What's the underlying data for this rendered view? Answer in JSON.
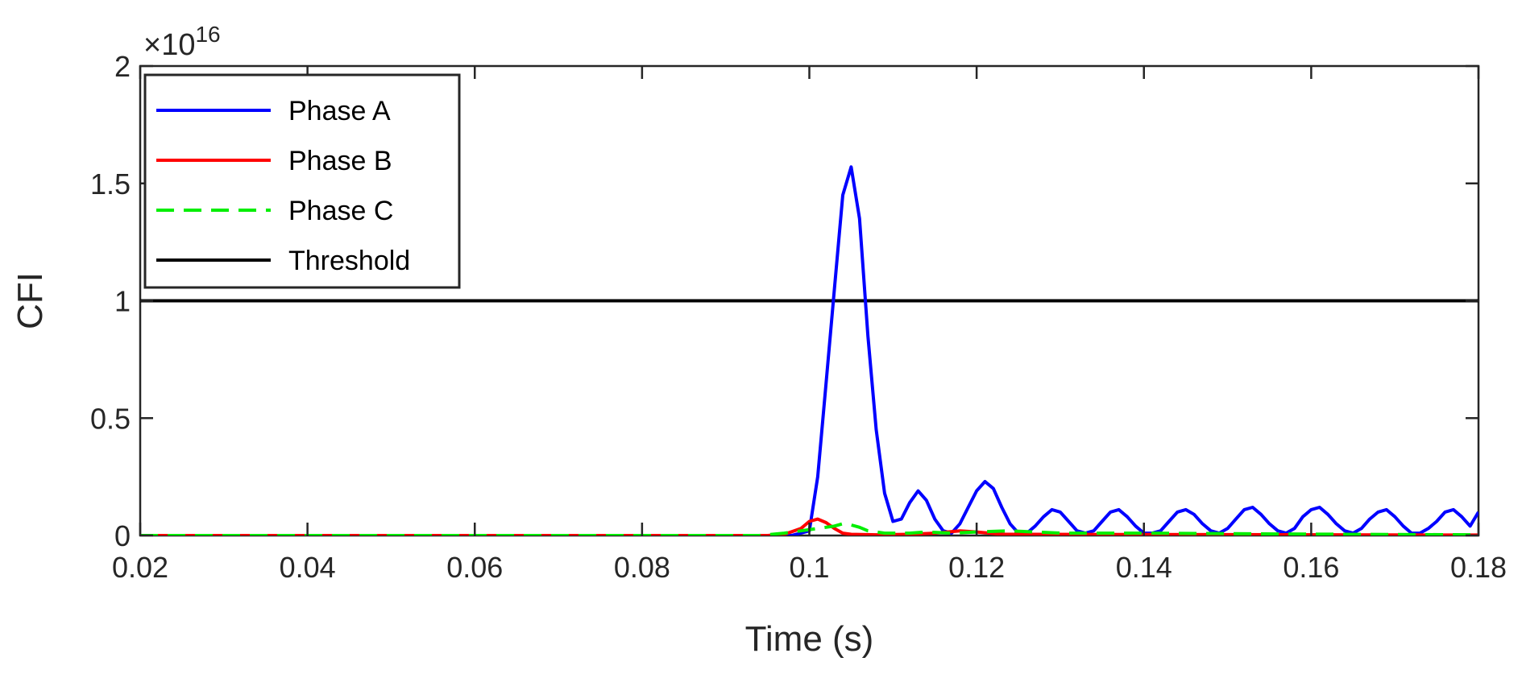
{
  "chart_data": {
    "type": "line",
    "title": "",
    "xlabel": "Time (s)",
    "ylabel": "CFI",
    "xlim": [
      0.02,
      0.18
    ],
    "ylim": [
      0,
      2
    ],
    "y_multiplier": {
      "base": "×10",
      "exponent": "16"
    },
    "xticks": [
      0.02,
      0.04,
      0.06,
      0.08,
      0.1,
      0.12,
      0.14,
      0.16,
      0.18
    ],
    "xtick_labels": [
      "0.02",
      "0.04",
      "0.06",
      "0.08",
      "0.1",
      "0.12",
      "0.14",
      "0.16",
      "0.18"
    ],
    "yticks": [
      0,
      0.5,
      1,
      1.5,
      2
    ],
    "ytick_labels": [
      "0",
      "0.5",
      "1",
      "1.5",
      "2"
    ],
    "grid": false,
    "legend_position": "top-left",
    "series": [
      {
        "name": "Phase A",
        "color": "#0000ff",
        "dash": "solid",
        "x": [
          0.02,
          0.09,
          0.096,
          0.098,
          0.1,
          0.101,
          0.102,
          0.103,
          0.104,
          0.105,
          0.106,
          0.107,
          0.108,
          0.109,
          0.11,
          0.111,
          0.112,
          0.113,
          0.114,
          0.115,
          0.116,
          0.117,
          0.118,
          0.119,
          0.12,
          0.121,
          0.122,
          0.123,
          0.124,
          0.125,
          0.126,
          0.127,
          0.128,
          0.129,
          0.13,
          0.131,
          0.132,
          0.133,
          0.134,
          0.135,
          0.136,
          0.137,
          0.138,
          0.139,
          0.14,
          0.141,
          0.142,
          0.143,
          0.144,
          0.145,
          0.146,
          0.147,
          0.148,
          0.149,
          0.15,
          0.151,
          0.152,
          0.153,
          0.154,
          0.155,
          0.156,
          0.157,
          0.158,
          0.159,
          0.16,
          0.161,
          0.162,
          0.163,
          0.164,
          0.165,
          0.166,
          0.167,
          0.168,
          0.169,
          0.17,
          0.171,
          0.172,
          0.173,
          0.174,
          0.175,
          0.176,
          0.177,
          0.178,
          0.179,
          0.18
        ],
        "y": [
          0,
          0,
          0,
          0.001,
          0.02,
          0.25,
          0.65,
          1.05,
          1.45,
          1.57,
          1.35,
          0.85,
          0.45,
          0.18,
          0.06,
          0.07,
          0.14,
          0.19,
          0.15,
          0.07,
          0.02,
          0.01,
          0.05,
          0.12,
          0.19,
          0.23,
          0.2,
          0.12,
          0.05,
          0.01,
          0.01,
          0.04,
          0.08,
          0.11,
          0.1,
          0.06,
          0.02,
          0.01,
          0.02,
          0.06,
          0.1,
          0.11,
          0.08,
          0.04,
          0.01,
          0.01,
          0.02,
          0.06,
          0.1,
          0.11,
          0.09,
          0.05,
          0.02,
          0.01,
          0.03,
          0.07,
          0.11,
          0.12,
          0.09,
          0.05,
          0.02,
          0.01,
          0.03,
          0.08,
          0.11,
          0.12,
          0.09,
          0.05,
          0.02,
          0.01,
          0.03,
          0.07,
          0.1,
          0.11,
          0.08,
          0.04,
          0.01,
          0.01,
          0.03,
          0.06,
          0.1,
          0.11,
          0.08,
          0.04,
          0.1
        ]
      },
      {
        "name": "Phase B",
        "color": "#ff0000",
        "dash": "solid",
        "x": [
          0.02,
          0.095,
          0.097,
          0.099,
          0.1,
          0.101,
          0.102,
          0.103,
          0.104,
          0.105,
          0.108,
          0.112,
          0.115,
          0.118,
          0.12,
          0.123,
          0.18
        ],
        "y": [
          0,
          0,
          0.005,
          0.03,
          0.06,
          0.07,
          0.055,
          0.03,
          0.01,
          0.005,
          0.003,
          0.005,
          0.01,
          0.02,
          0.015,
          0.005,
          0.002
        ]
      },
      {
        "name": "Phase C",
        "color": "#00ee00",
        "dash": "dash",
        "x": [
          0.02,
          0.094,
          0.097,
          0.099,
          0.101,
          0.103,
          0.104,
          0.105,
          0.106,
          0.107,
          0.109,
          0.112,
          0.114,
          0.117,
          0.12,
          0.124,
          0.13,
          0.14,
          0.15,
          0.16,
          0.17,
          0.18
        ],
        "y": [
          0,
          0,
          0.01,
          0.02,
          0.03,
          0.04,
          0.05,
          0.045,
          0.035,
          0.02,
          0.01,
          0.01,
          0.015,
          0.01,
          0.015,
          0.02,
          0.01,
          0.01,
          0.008,
          0.006,
          0.004,
          0.003
        ]
      },
      {
        "name": "Threshold",
        "color": "#000000",
        "dash": "solid",
        "x": [
          0.02,
          0.18
        ],
        "y": [
          1,
          1
        ]
      }
    ]
  }
}
